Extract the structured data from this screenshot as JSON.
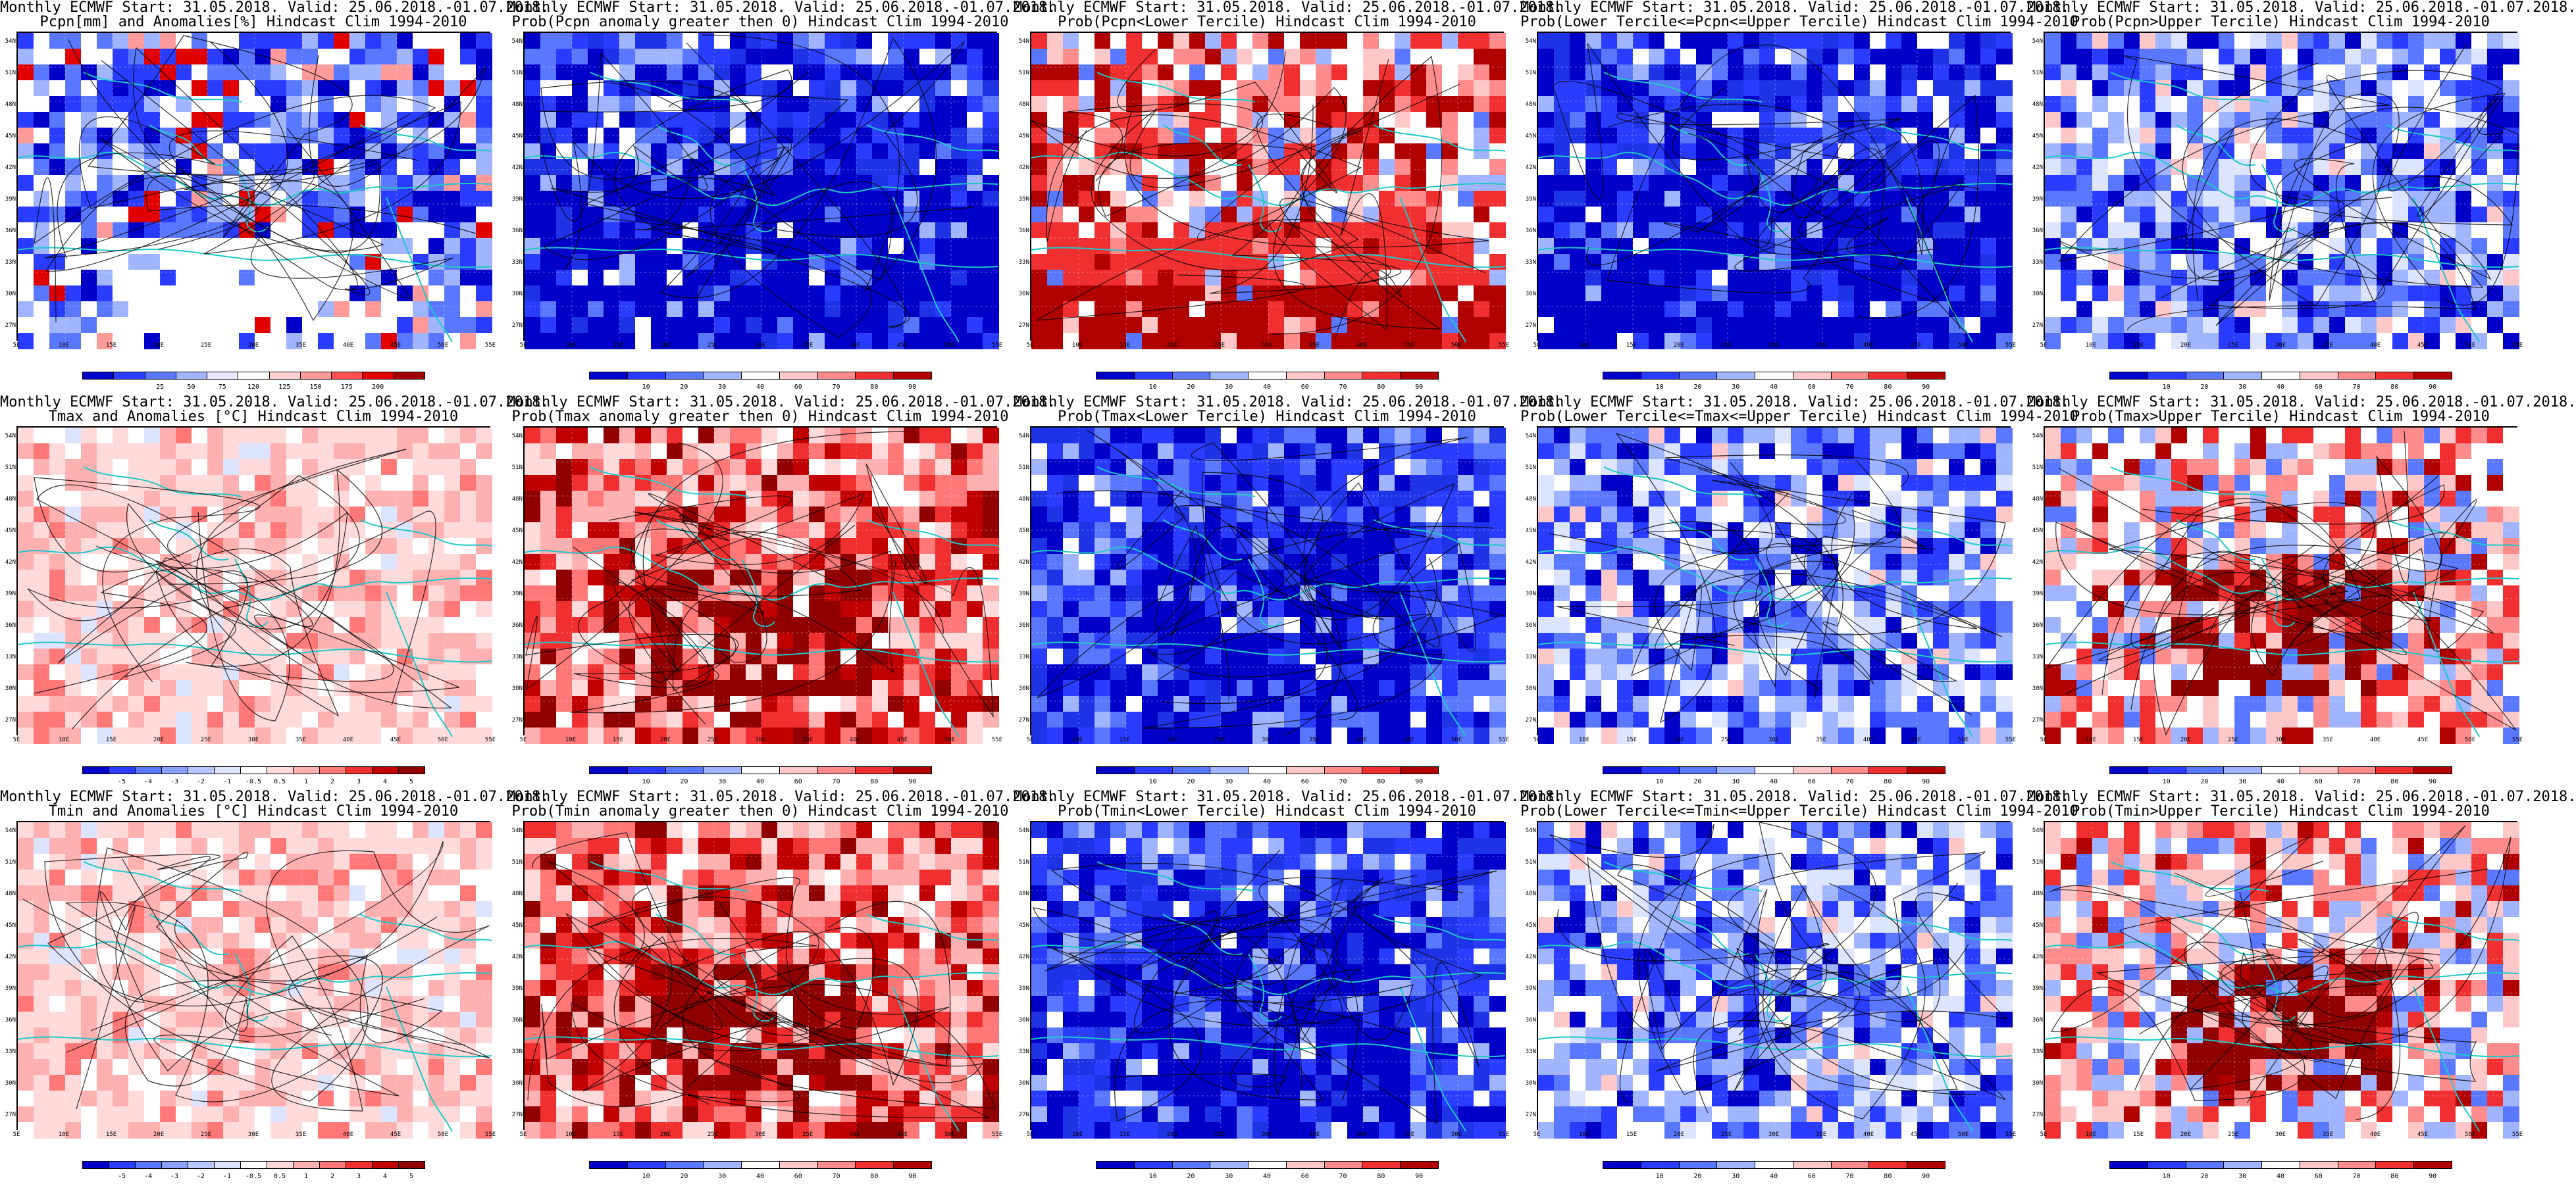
{
  "rows": [
    {
      "variable": "Pcpn",
      "panels": [
        {
          "title1": "Monthly ECMWF Start: 31.05.2018. Valid: 25.06.2018.-01.07.2018.",
          "title2": "Pcpn[mm] and Anomalies[%] Hindcast Clim 1994-2010",
          "scheme": "anom-pcp",
          "cbar": "pcp"
        },
        {
          "title1": "Monthly ECMWF Start: 31.05.2018. Valid: 25.06.2018.-01.07.2018.",
          "title2": "Prob(Pcpn anomaly greater then 0) Hindcast Clim 1994-2010",
          "scheme": "blue-heavy",
          "cbar": "prob"
        },
        {
          "title1": "Monthly ECMWF Start: 31.05.2018. Valid: 25.06.2018.-01.07.2018.",
          "title2": "Prob(Pcpn<Lower Tercile) Hindcast Clim 1994-2010",
          "scheme": "red-south",
          "cbar": "prob"
        },
        {
          "title1": "Monthly ECMWF Start: 31.05.2018. Valid: 25.06.2018.-01.07.2018.",
          "title2": "Prob(Lower Tercile<=Pcpn<=Upper Tercile) Hindcast Clim 1994-2010",
          "scheme": "blue-heavy",
          "cbar": "prob"
        },
        {
          "title1": "Monthly ECMWF Start: 31.05.2018. Valid: 25.06.2018.-01.07.2018.",
          "title2": "Prob(Pcpn>Upper Tercile) Hindcast Clim 1994-2010",
          "scheme": "blue-mix",
          "cbar": "prob"
        }
      ]
    },
    {
      "variable": "Tmax",
      "panels": [
        {
          "title1": "Monthly ECMWF Start: 31.05.2018. Valid: 25.06.2018.-01.07.2018.",
          "title2": "Tmax and Anomalies [°C] Hindcast Clim 1994-2010",
          "scheme": "pink",
          "cbar": "anom"
        },
        {
          "title1": "Monthly ECMWF Start: 31.05.2018. Valid: 25.06.2018.-01.07.2018.",
          "title2": "Prob(Tmax anomaly greater then 0) Hindcast Clim 1994-2010",
          "scheme": "red-center",
          "cbar": "prob"
        },
        {
          "title1": "Monthly ECMWF Start: 31.05.2018. Valid: 25.06.2018.-01.07.2018.",
          "title2": "Prob(Tmax<Lower Tercile) Hindcast Clim 1994-2010",
          "scheme": "blue-deep",
          "cbar": "prob"
        },
        {
          "title1": "Monthly ECMWF Start: 31.05.2018. Valid: 25.06.2018.-01.07.2018.",
          "title2": "Prob(Lower Tercile<=Tmax<=Upper Tercile) Hindcast Clim 1994-2010",
          "scheme": "blue-mix",
          "cbar": "prob"
        },
        {
          "title1": "Monthly ECMWF Start: 31.05.2018. Valid: 25.06.2018.-01.07.2018.",
          "title2": "Prob(Tmax>Upper Tercile) Hindcast Clim 1994-2010",
          "scheme": "red-mix",
          "cbar": "prob"
        }
      ]
    },
    {
      "variable": "Tmin",
      "panels": [
        {
          "title1": "Monthly ECMWF Start: 31.05.2018. Valid: 25.06.2018.-01.07.2018.",
          "title2": "Tmin and Anomalies [°C] Hindcast Clim 1994-2010",
          "scheme": "pink",
          "cbar": "anom"
        },
        {
          "title1": "Monthly ECMWF Start: 31.05.2018. Valid: 25.06.2018.-01.07.2018.",
          "title2": "Prob(Tmin anomaly greater then 0) Hindcast Clim 1994-2010",
          "scheme": "red-center",
          "cbar": "prob"
        },
        {
          "title1": "Monthly ECMWF Start: 31.05.2018. Valid: 25.06.2018.-01.07.2018.",
          "title2": "Prob(Tmin<Lower Tercile) Hindcast Clim 1994-2010",
          "scheme": "blue-deep",
          "cbar": "prob"
        },
        {
          "title1": "Monthly ECMWF Start: 31.05.2018. Valid: 25.06.2018.-01.07.2018.",
          "title2": "Prob(Lower Tercile<=Tmin<=Upper Tercile) Hindcast Clim 1994-2010",
          "scheme": "blue-mix",
          "cbar": "prob"
        },
        {
          "title1": "Monthly ECMWF Start: 31.05.2018. Valid: 25.06.2018.-01.07.2018.",
          "title2": "Prob(Tmin>Upper Tercile) Hindcast Clim 1994-2010",
          "scheme": "red-mix",
          "cbar": "prob"
        }
      ]
    }
  ],
  "lat_labels": [
    "54N",
    "51N",
    "48N",
    "45N",
    "42N",
    "39N",
    "36N",
    "33N",
    "30N",
    "27N"
  ],
  "lon_labels": [
    "5E",
    "10E",
    "15E",
    "20E",
    "25E",
    "30E",
    "35E",
    "40E",
    "45E",
    "50E",
    "55E"
  ],
  "colorbars": {
    "pcp": {
      "ticks": [
        "25",
        "50",
        "75",
        "120",
        "125",
        "150",
        "175",
        "200"
      ],
      "colors": [
        "#0000c8",
        "#2a3cff",
        "#5a78ff",
        "#a0b4ff",
        "#e8e8ff",
        "#ffffff",
        "#ffd2d2",
        "#ff9a9a",
        "#ff5050",
        "#e00000",
        "#a00000"
      ]
    },
    "prob": {
      "ticks": [
        "10",
        "20",
        "30",
        "40",
        "60",
        "70",
        "80",
        "90"
      ],
      "colors": [
        "#0000c8",
        "#2a3cff",
        "#5a78ff",
        "#a0b4ff",
        "#ffffff",
        "#ffc8c8",
        "#ff8c8c",
        "#f03030",
        "#b00000"
      ]
    },
    "anom": {
      "ticks": [
        "-5",
        "-4",
        "-3",
        "-2",
        "-1",
        "-0.5",
        "0.5",
        "1",
        "2",
        "3",
        "4",
        "5"
      ],
      "colors": [
        "#0000c8",
        "#2a3cff",
        "#5a78ff",
        "#8aa0ff",
        "#b8c8ff",
        "#dde4ff",
        "#ffffff",
        "#ffdada",
        "#ffb0b0",
        "#ff7878",
        "#f03030",
        "#c00000",
        "#900000"
      ]
    }
  },
  "palette": {
    "coast": "#1ec8c8",
    "contour": "#000000"
  }
}
